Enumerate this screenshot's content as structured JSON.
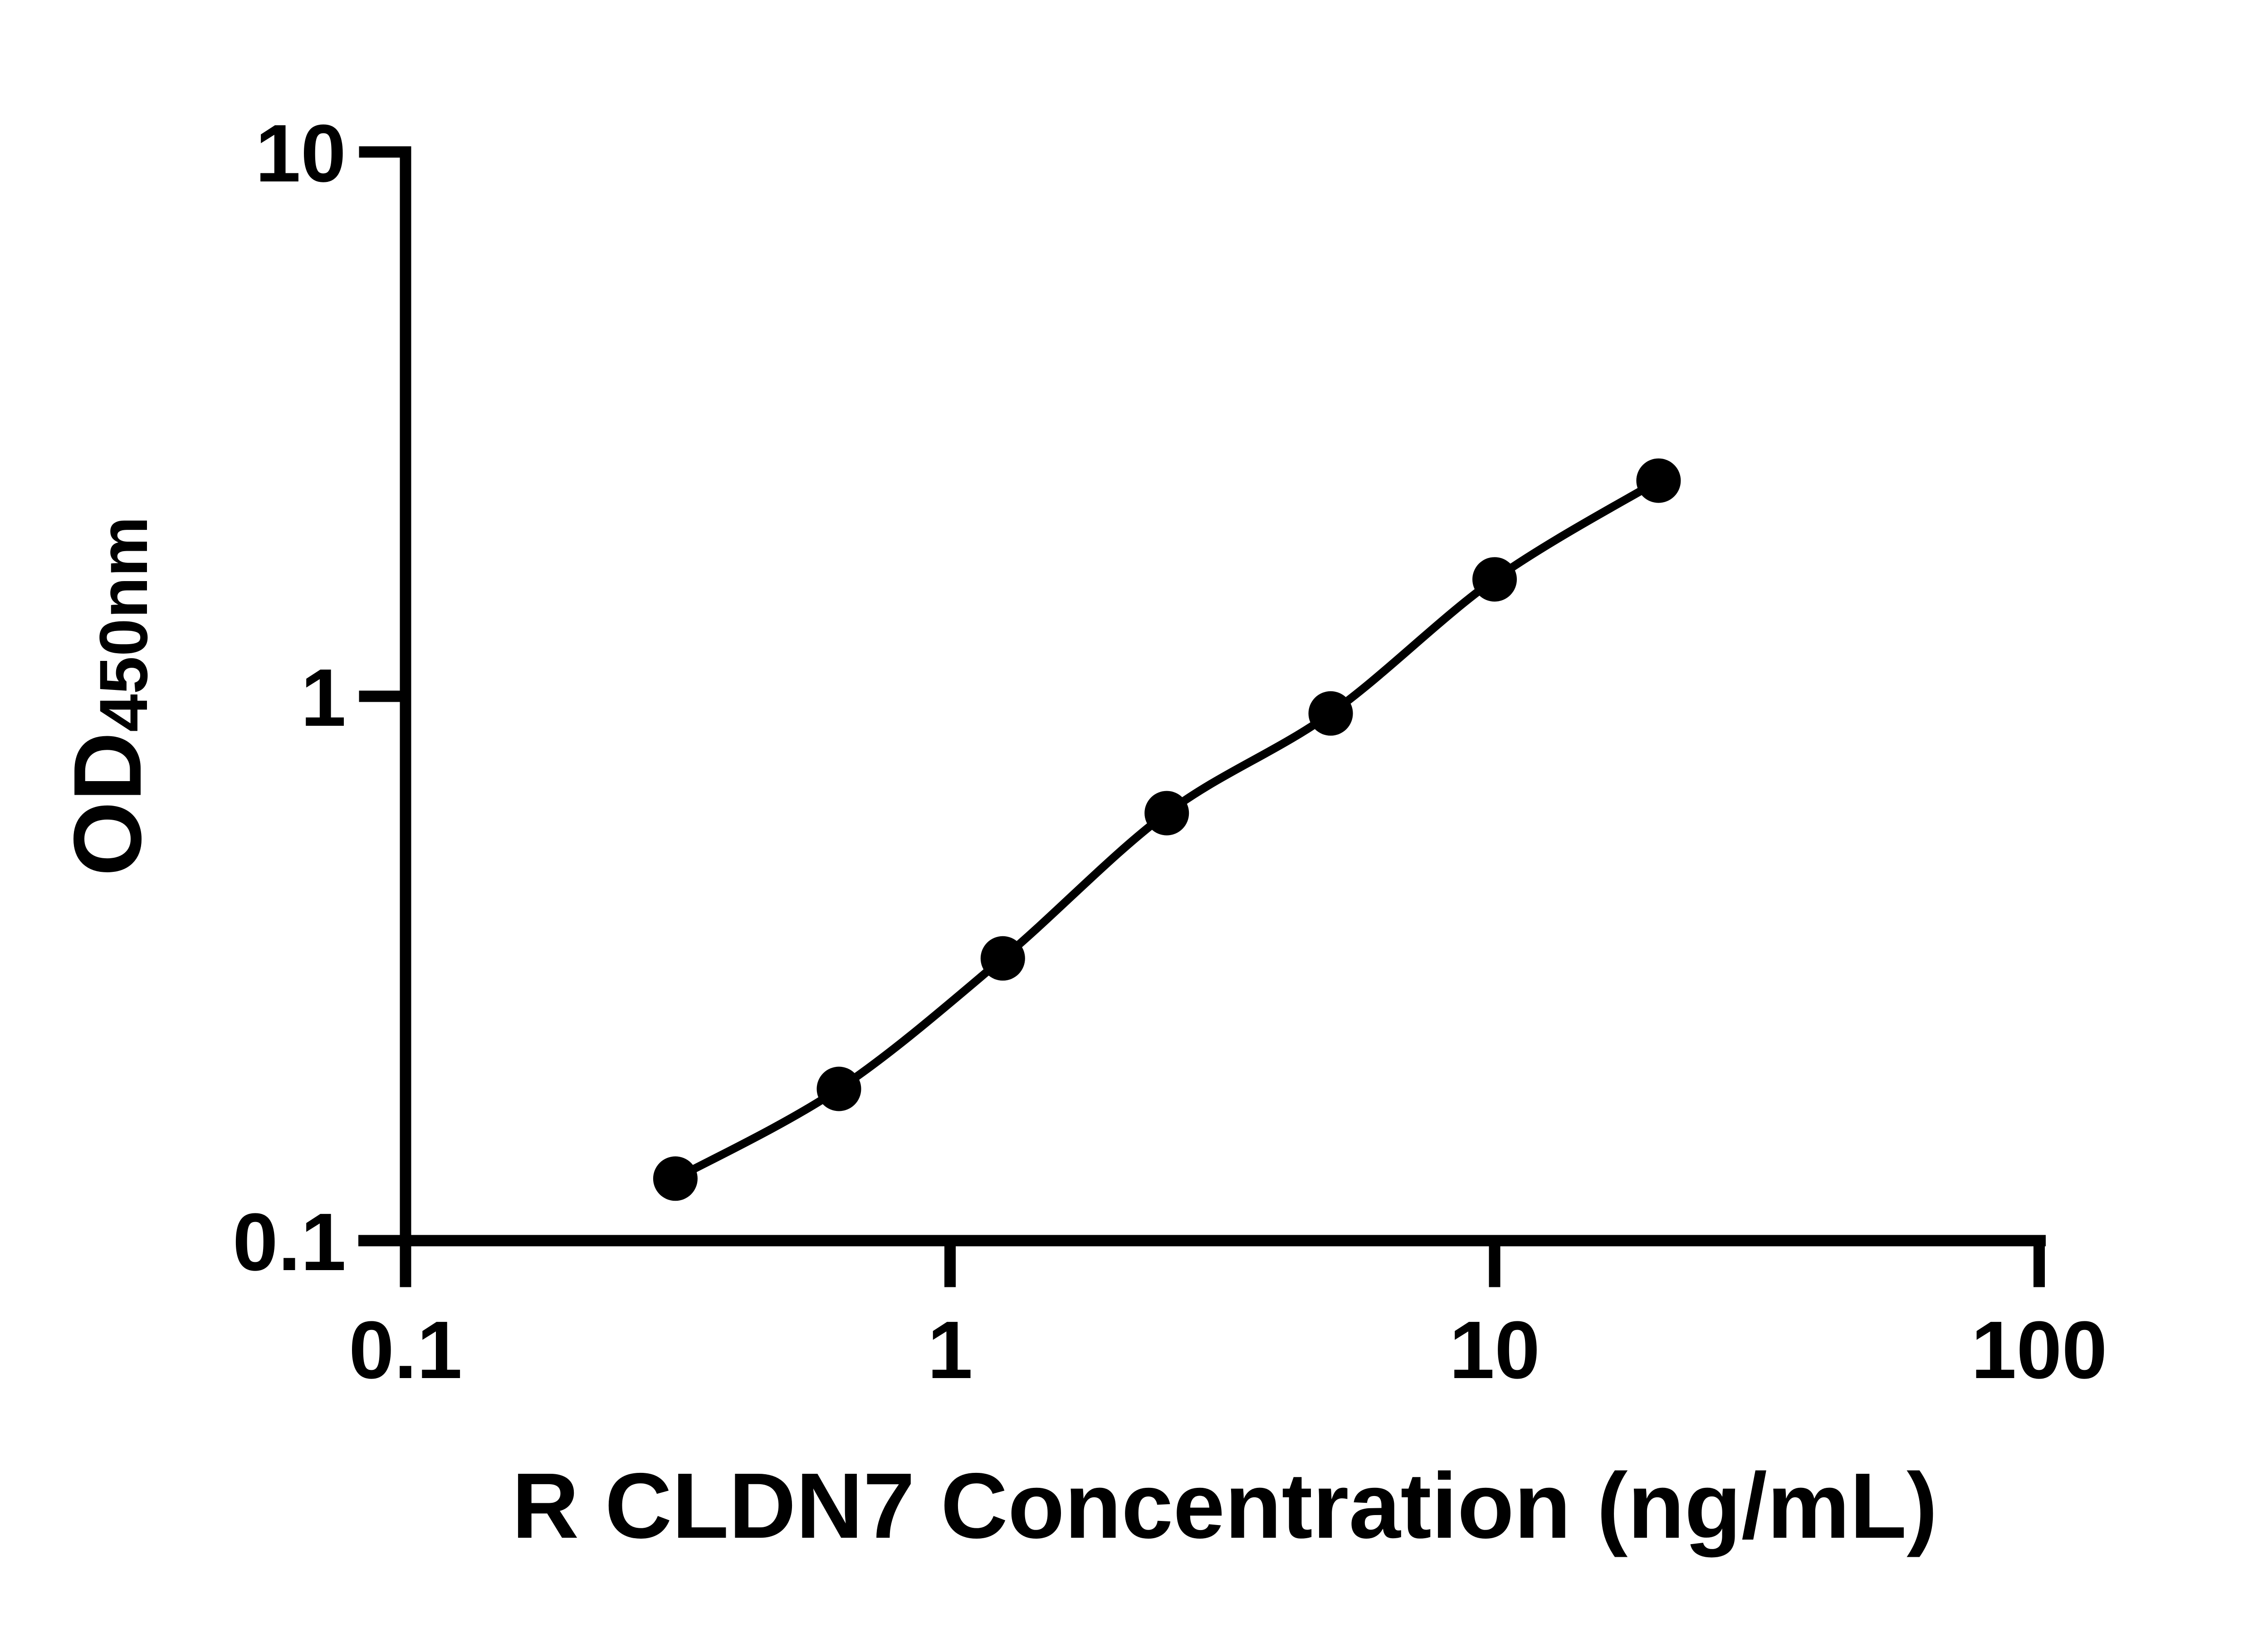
{
  "chart_data": {
    "type": "scatter",
    "title": "",
    "xlabel": "R CLDN7 Concentration (ng/mL)",
    "ylabel_main": "OD",
    "ylabel_sub": "450nm",
    "x_scale": "log",
    "y_scale": "log",
    "xlim": [
      0.1,
      100
    ],
    "ylim": [
      0.1,
      10
    ],
    "x_ticks": [
      0.1,
      1,
      10,
      100
    ],
    "x_tick_labels": [
      "0.1",
      "1",
      "10",
      "100"
    ],
    "y_ticks": [
      10,
      1,
      0.1
    ],
    "y_tick_labels": [
      "10",
      "1",
      "0.1"
    ],
    "grid": false,
    "legend": null,
    "series": [
      {
        "name": "standard-curve",
        "marker": "circle",
        "line": "smooth",
        "x": [
          0.313,
          0.625,
          1.25,
          2.5,
          5,
          10,
          20
        ],
        "y": [
          0.13,
          0.19,
          0.33,
          0.61,
          0.93,
          1.64,
          2.49
        ]
      }
    ]
  },
  "colors": {
    "foreground": "#000000",
    "background": "#ffffff"
  }
}
